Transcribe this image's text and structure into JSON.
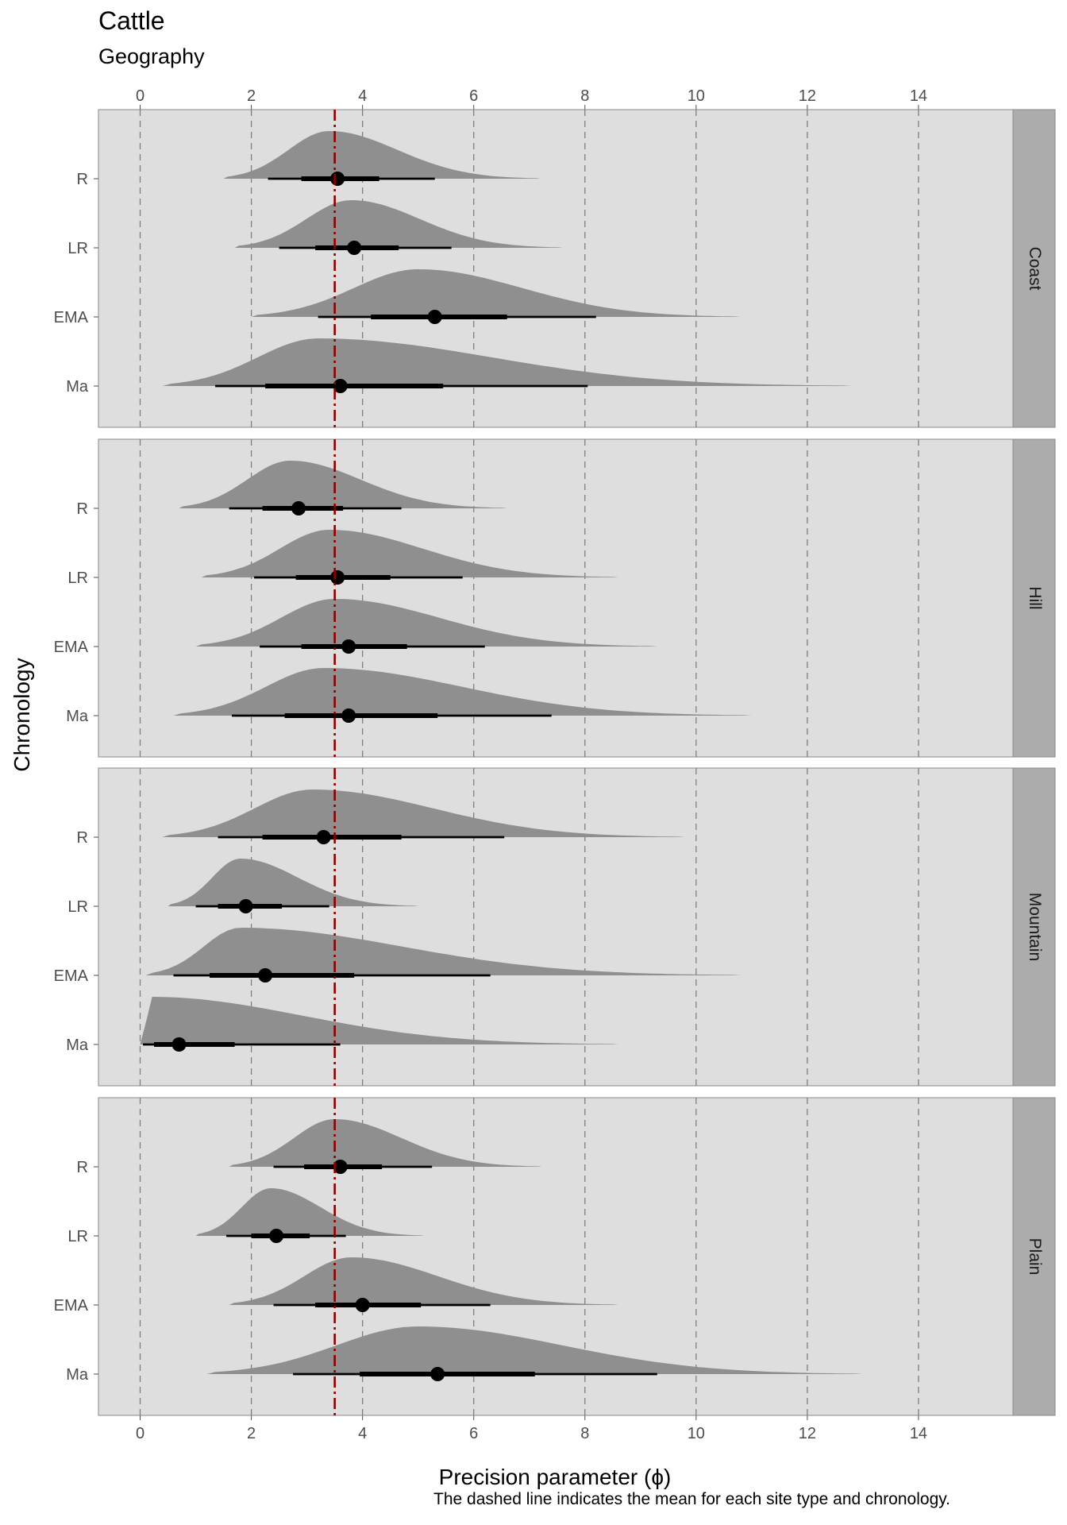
{
  "chart_data": {
    "type": "halfeye",
    "title": "Cattle",
    "subtitle": "Geography",
    "xlabel": "Precision parameter (ϕ)",
    "ylabel": "Chronology",
    "caption": "The dashed line indicates the mean for each site type and chronology.",
    "xlim": [
      -0.75,
      15.7
    ],
    "x_ticks": [
      0,
      2,
      4,
      6,
      8,
      10,
      12,
      14
    ],
    "categories": [
      "R",
      "LR",
      "EMA",
      "Ma"
    ],
    "mean_line": 3.5,
    "grid": "dashed vertical",
    "colors": {
      "panel": "#dedede",
      "strip": "#acacac",
      "density": "#8f8f8f",
      "mean_line": "#8b0000",
      "grid": "#7f7f7f"
    },
    "facets": [
      {
        "name": "Coast",
        "rows": [
          {
            "label": "R",
            "median": 3.55,
            "mode": 3.4,
            "ci66": [
              2.9,
              4.3
            ],
            "ci95": [
              2.3,
              5.3
            ],
            "range": [
              1.5,
              7.2
            ]
          },
          {
            "label": "LR",
            "median": 3.85,
            "mode": 3.8,
            "ci66": [
              3.15,
              4.65
            ],
            "ci95": [
              2.5,
              5.6
            ],
            "range": [
              1.7,
              7.6
            ]
          },
          {
            "label": "EMA",
            "median": 5.3,
            "mode": 5.0,
            "ci66": [
              4.15,
              6.6
            ],
            "ci95": [
              3.2,
              8.2
            ],
            "range": [
              2.0,
              10.8
            ]
          },
          {
            "label": "Ma",
            "median": 3.6,
            "mode": 3.2,
            "ci66": [
              2.25,
              5.45
            ],
            "ci95": [
              1.35,
              8.05
            ],
            "range": [
              0.4,
              12.8
            ]
          }
        ]
      },
      {
        "name": "Hill",
        "rows": [
          {
            "label": "R",
            "median": 2.85,
            "mode": 2.7,
            "ci66": [
              2.2,
              3.65
            ],
            "ci95": [
              1.6,
              4.7
            ],
            "range": [
              0.7,
              6.6
            ]
          },
          {
            "label": "LR",
            "median": 3.55,
            "mode": 3.4,
            "ci66": [
              2.8,
              4.5
            ],
            "ci95": [
              2.05,
              5.8
            ],
            "range": [
              1.1,
              8.6
            ]
          },
          {
            "label": "EMA",
            "median": 3.75,
            "mode": 3.5,
            "ci66": [
              2.9,
              4.8
            ],
            "ci95": [
              2.15,
              6.2
            ],
            "range": [
              1.0,
              9.3
            ]
          },
          {
            "label": "Ma",
            "median": 3.75,
            "mode": 3.3,
            "ci66": [
              2.6,
              5.35
            ],
            "ci95": [
              1.65,
              7.4
            ],
            "range": [
              0.6,
              11.0
            ]
          }
        ]
      },
      {
        "name": "Mountain",
        "rows": [
          {
            "label": "R",
            "median": 3.3,
            "mode": 3.1,
            "ci66": [
              2.2,
              4.7
            ],
            "ci95": [
              1.4,
              6.55
            ],
            "range": [
              0.4,
              9.8
            ]
          },
          {
            "label": "LR",
            "median": 1.9,
            "mode": 1.8,
            "ci66": [
              1.4,
              2.55
            ],
            "ci95": [
              1.0,
              3.4
            ],
            "range": [
              0.5,
              5.0
            ]
          },
          {
            "label": "EMA",
            "median": 2.25,
            "mode": 1.8,
            "ci66": [
              1.25,
              3.85
            ],
            "ci95": [
              0.6,
              6.3
            ],
            "range": [
              0.1,
              10.8
            ]
          },
          {
            "label": "Ma",
            "median": 0.7,
            "mode": 0.2,
            "ci66": [
              0.25,
              1.7
            ],
            "ci95": [
              0.05,
              3.6
            ],
            "range": [
              0.0,
              8.6
            ]
          }
        ]
      },
      {
        "name": "Plain",
        "rows": [
          {
            "label": "R",
            "median": 3.6,
            "mode": 3.5,
            "ci66": [
              2.95,
              4.35
            ],
            "ci95": [
              2.4,
              5.25
            ],
            "range": [
              1.6,
              7.2
            ]
          },
          {
            "label": "LR",
            "median": 2.45,
            "mode": 2.35,
            "ci66": [
              2.0,
              3.05
            ],
            "ci95": [
              1.55,
              3.7
            ],
            "range": [
              1.0,
              5.1
            ]
          },
          {
            "label": "EMA",
            "median": 4.0,
            "mode": 3.8,
            "ci66": [
              3.15,
              5.05
            ],
            "ci95": [
              2.4,
              6.3
            ],
            "range": [
              1.6,
              8.6
            ]
          },
          {
            "label": "Ma",
            "median": 5.35,
            "mode": 5.0,
            "ci66": [
              3.95,
              7.1
            ],
            "ci95": [
              2.75,
              9.3
            ],
            "range": [
              1.2,
              13.0
            ]
          }
        ]
      }
    ]
  }
}
